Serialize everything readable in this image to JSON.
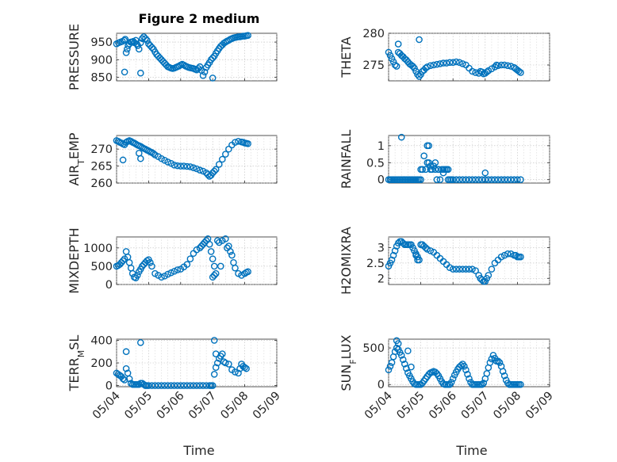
{
  "figure_title": "Figure 2 medium",
  "marker_color": "#0072BD",
  "xlabel_bottom": "Time",
  "x_ticks": [
    "05/04",
    "05/05",
    "05/06",
    "05/07",
    "05/08",
    "05/09"
  ],
  "chart_data": [
    {
      "type": "scatter",
      "title": "Figure 2 medium",
      "ylabel": "PRESSURE",
      "ylim": [
        840,
        975
      ],
      "yticks": [
        850,
        900,
        950
      ],
      "grid": true,
      "x": [
        0,
        0.06,
        0.12,
        0.18,
        0.24,
        0.27,
        0.3,
        0.33,
        0.36,
        0.4,
        0.44,
        0.48,
        0.52,
        0.56,
        0.6,
        0.63,
        0.66,
        0.7,
        0.75,
        0.8,
        0.85,
        0.9,
        0.95,
        1.0,
        1.05,
        1.1,
        1.15,
        1.2,
        1.25,
        1.3,
        1.35,
        1.4,
        1.45,
        1.5,
        1.55,
        1.6,
        1.65,
        1.7,
        1.75,
        1.8,
        1.85,
        1.9,
        1.95,
        2.0,
        2.05,
        2.1,
        2.15,
        2.2,
        2.25,
        2.3,
        2.35,
        2.4,
        2.45,
        2.5,
        2.55,
        2.6,
        2.65,
        2.7,
        2.75,
        2.8,
        2.85,
        2.9,
        2.95,
        3.0,
        3.05,
        3.1,
        3.15,
        3.2,
        3.25,
        3.3,
        3.35,
        3.4,
        3.45,
        3.5,
        3.55,
        3.6,
        3.65,
        3.7,
        3.75,
        3.8,
        3.85,
        3.9,
        3.95,
        4.0,
        4.05,
        4.1,
        0.25,
        0.75,
        3.0
      ],
      "y": [
        945,
        948,
        950,
        952,
        955,
        958,
        920,
        930,
        940,
        945,
        950,
        950,
        952,
        948,
        955,
        945,
        940,
        930,
        948,
        960,
        965,
        960,
        955,
        945,
        940,
        935,
        930,
        922,
        915,
        910,
        905,
        900,
        895,
        890,
        885,
        880,
        878,
        876,
        875,
        876,
        878,
        880,
        882,
        885,
        887,
        885,
        882,
        880,
        878,
        877,
        876,
        875,
        873,
        871,
        875,
        880,
        870,
        855,
        865,
        878,
        885,
        892,
        900,
        905,
        910,
        918,
        925,
        932,
        938,
        942,
        947,
        950,
        953,
        955,
        958,
        960,
        962,
        963,
        964,
        965,
        965,
        966,
        967,
        967,
        968,
        969,
        865,
        862,
        848
      ]
    },
    {
      "type": "scatter",
      "ylabel": "THETA",
      "ylim": [
        272.5,
        280
      ],
      "yticks": [
        275,
        280
      ],
      "grid": true,
      "x": [
        0,
        0.05,
        0.1,
        0.15,
        0.2,
        0.25,
        0.3,
        0.35,
        0.4,
        0.45,
        0.5,
        0.55,
        0.6,
        0.65,
        0.7,
        0.75,
        0.8,
        0.85,
        0.9,
        0.95,
        1.0,
        1.05,
        1.1,
        1.15,
        1.2,
        1.3,
        1.4,
        1.5,
        1.6,
        1.7,
        1.8,
        1.9,
        2.0,
        2.1,
        2.2,
        2.3,
        2.4,
        2.5,
        2.6,
        2.7,
        2.8,
        2.85,
        2.9,
        2.95,
        3.0,
        3.05,
        3.1,
        3.2,
        3.3,
        3.4,
        3.5,
        3.6,
        3.7,
        3.8,
        3.9,
        3.95,
        4.0,
        4.05,
        4.1,
        0.3,
        0.95,
        3.35
      ],
      "y": [
        277,
        276.5,
        276,
        275.5,
        275,
        274.8,
        277,
        276.8,
        276.5,
        276.3,
        276,
        275.8,
        275.5,
        275.2,
        275,
        274.8,
        274.5,
        274,
        273.5,
        273.2,
        273.5,
        274,
        274.2,
        274.5,
        274.7,
        274.9,
        275,
        275.1,
        275.2,
        275.3,
        275.3,
        275.4,
        275.4,
        275.5,
        275.4,
        275.2,
        275,
        274.5,
        274,
        273.8,
        273.7,
        274,
        273.9,
        273.6,
        273.7,
        273.9,
        274.1,
        274.4,
        274.7,
        274.9,
        275,
        275,
        274.9,
        274.8,
        274.6,
        274.4,
        274.2,
        274.0,
        273.8,
        278.3,
        279.0,
        275.0
      ]
    },
    {
      "type": "scatter",
      "ylabel": "AIR_TEMP",
      "ylim": [
        260,
        274
      ],
      "yticks": [
        260,
        265,
        270
      ],
      "grid": true,
      "x": [
        0,
        0.05,
        0.1,
        0.15,
        0.2,
        0.25,
        0.3,
        0.35,
        0.4,
        0.45,
        0.5,
        0.55,
        0.6,
        0.65,
        0.7,
        0.75,
        0.8,
        0.85,
        0.9,
        0.95,
        1.0,
        1.05,
        1.1,
        1.15,
        1.2,
        1.3,
        1.4,
        1.5,
        1.6,
        1.7,
        1.8,
        1.9,
        2.0,
        2.1,
        2.2,
        2.3,
        2.4,
        2.5,
        2.6,
        2.7,
        2.8,
        2.85,
        2.9,
        2.95,
        3.0,
        3.05,
        3.1,
        3.2,
        3.3,
        3.4,
        3.5,
        3.6,
        3.7,
        3.8,
        3.9,
        3.95,
        4.0,
        4.05,
        4.1,
        0.2,
        0.7,
        0.75
      ],
      "y": [
        272.5,
        272.3,
        272,
        271.8,
        271.5,
        271.3,
        272,
        272.3,
        272.5,
        272.3,
        272,
        271.8,
        271.5,
        271.2,
        271,
        270.8,
        270.5,
        270.2,
        270,
        269.7,
        269.5,
        269.2,
        269,
        268.7,
        268.3,
        267.8,
        267.2,
        266.7,
        266.2,
        265.8,
        265.3,
        265.1,
        265,
        265,
        264.9,
        264.8,
        264.5,
        264.2,
        263.8,
        263.5,
        263,
        262.5,
        262,
        262.3,
        263,
        263.5,
        264,
        265.5,
        267,
        268.5,
        270,
        271.2,
        272,
        272.3,
        272.1,
        272,
        271.8,
        271.7,
        271.6,
        266.8,
        268.8,
        267.2
      ]
    },
    {
      "type": "scatter",
      "ylabel": "RAINFALL",
      "ylim": [
        -0.1,
        1.3
      ],
      "yticks": [
        0,
        0.5,
        1
      ],
      "grid": true,
      "x": [
        0,
        0.05,
        0.1,
        0.15,
        0.2,
        0.25,
        0.3,
        0.35,
        0.4,
        0.45,
        0.5,
        0.55,
        0.6,
        0.65,
        0.7,
        0.75,
        0.8,
        0.85,
        0.9,
        0.95,
        1.0,
        1.05,
        1.1,
        1.15,
        1.2,
        1.25,
        1.3,
        1.35,
        1.4,
        1.45,
        1.5,
        1.55,
        1.6,
        1.65,
        1.7,
        1.75,
        1.8,
        1.85,
        1.9,
        1.95,
        2.0,
        2.1,
        2.2,
        2.3,
        2.4,
        2.5,
        2.6,
        2.7,
        2.8,
        2.9,
        3.0,
        3.1,
        3.2,
        3.3,
        3.4,
        3.5,
        3.6,
        3.7,
        3.8,
        3.9,
        4.0,
        4.1,
        0.4,
        1.0,
        1.05,
        1.2,
        1.25,
        1.3,
        1.45,
        1.55,
        1.7,
        1.8,
        1.85,
        3.0
      ],
      "y": [
        0,
        0,
        0,
        0,
        0,
        0,
        0,
        0,
        0,
        0,
        0,
        0,
        0,
        0,
        0,
        0,
        0,
        0,
        0,
        0,
        0,
        0.3,
        0.7,
        0.3,
        0.5,
        0.5,
        0.4,
        0.3,
        0.4,
        0.5,
        0,
        0.3,
        0,
        0.3,
        0.2,
        0.3,
        0.3,
        0,
        0,
        0,
        0,
        0,
        0,
        0,
        0,
        0,
        0,
        0,
        0,
        0,
        0,
        0,
        0,
        0,
        0,
        0,
        0,
        0,
        0,
        0,
        0,
        0,
        1.25,
        0.3,
        0.3,
        1.0,
        1.0,
        0.3,
        0.3,
        0.3,
        0.3,
        0.3,
        0.3,
        0.2
      ]
    },
    {
      "type": "scatter",
      "ylabel": "MIXDEPTH",
      "ylim": [
        0,
        1300
      ],
      "yticks": [
        0,
        500,
        1000
      ],
      "grid": true,
      "x": [
        0,
        0.05,
        0.1,
        0.15,
        0.2,
        0.25,
        0.3,
        0.35,
        0.4,
        0.45,
        0.5,
        0.55,
        0.6,
        0.65,
        0.7,
        0.75,
        0.8,
        0.85,
        0.9,
        0.95,
        1.0,
        1.05,
        1.1,
        1.2,
        1.3,
        1.4,
        1.5,
        1.6,
        1.7,
        1.8,
        1.9,
        2.0,
        2.1,
        2.2,
        2.3,
        2.4,
        2.5,
        2.6,
        2.65,
        2.7,
        2.75,
        2.8,
        2.85,
        2.9,
        2.95,
        3.0,
        3.05,
        3.1,
        3.15,
        3.2,
        3.3,
        3.4,
        3.5,
        3.55,
        3.6,
        3.65,
        3.7,
        3.8,
        3.9,
        4.0,
        4.05,
        4.1,
        3.0,
        3.05,
        3.25,
        3.45
      ],
      "y": [
        500,
        520,
        550,
        600,
        650,
        700,
        900,
        750,
        600,
        450,
        300,
        200,
        180,
        250,
        350,
        420,
        500,
        550,
        600,
        650,
        680,
        600,
        500,
        300,
        250,
        200,
        230,
        280,
        320,
        360,
        400,
        420,
        480,
        550,
        700,
        850,
        950,
        1000,
        1050,
        1100,
        1150,
        1200,
        1250,
        1100,
        900,
        700,
        500,
        300,
        1200,
        1150,
        1200,
        1250,
        1050,
        900,
        800,
        600,
        450,
        300,
        250,
        300,
        330,
        350,
        200,
        250,
        500,
        1000
      ]
    },
    {
      "type": "scatter",
      "ylabel": "H2OMIXRA",
      "ylim": [
        1.8,
        3.35
      ],
      "yticks": [
        2,
        2.5,
        3
      ],
      "grid": true,
      "x": [
        0,
        0.05,
        0.1,
        0.15,
        0.2,
        0.25,
        0.3,
        0.35,
        0.4,
        0.45,
        0.5,
        0.55,
        0.6,
        0.65,
        0.7,
        0.75,
        0.8,
        0.85,
        0.9,
        0.95,
        1.0,
        1.05,
        1.1,
        1.15,
        1.2,
        1.3,
        1.4,
        1.5,
        1.6,
        1.7,
        1.8,
        1.9,
        2.0,
        2.1,
        2.2,
        2.3,
        2.4,
        2.5,
        2.6,
        2.7,
        2.8,
        2.85,
        2.9,
        2.95,
        3.0,
        3.05,
        3.1,
        3.2,
        3.3,
        3.4,
        3.5,
        3.6,
        3.7,
        3.8,
        3.9,
        3.95,
        4.0,
        4.05,
        4.1,
        0.85,
        0.9
      ],
      "y": [
        2.4,
        2.5,
        2.6,
        2.75,
        2.9,
        3.05,
        3.15,
        3.2,
        3.2,
        3.15,
        3.1,
        3.1,
        3.1,
        3.1,
        3.1,
        3.0,
        2.9,
        2.8,
        2.7,
        2.6,
        3.1,
        3.1,
        3.05,
        3.0,
        2.95,
        2.9,
        2.85,
        2.75,
        2.65,
        2.55,
        2.45,
        2.35,
        2.3,
        2.3,
        2.3,
        2.3,
        2.3,
        2.3,
        2.3,
        2.25,
        2.1,
        2.0,
        1.95,
        1.9,
        1.9,
        2.0,
        2.1,
        2.3,
        2.5,
        2.6,
        2.7,
        2.75,
        2.8,
        2.8,
        2.75,
        2.75,
        2.7,
        2.7,
        2.7,
        2.75,
        2.6
      ]
    },
    {
      "type": "scatter",
      "ylabel": "TERR_MSL",
      "ylim": [
        -10,
        410
      ],
      "yticks": [
        0,
        200,
        400
      ],
      "grid": true,
      "x": [
        0,
        0.05,
        0.1,
        0.15,
        0.2,
        0.25,
        0.3,
        0.35,
        0.4,
        0.45,
        0.5,
        0.55,
        0.6,
        0.65,
        0.7,
        0.75,
        0.8,
        0.85,
        0.9,
        0.95,
        1.0,
        1.1,
        1.2,
        1.3,
        1.4,
        1.5,
        1.6,
        1.7,
        1.8,
        1.9,
        2.0,
        2.1,
        2.2,
        2.3,
        2.4,
        2.5,
        2.6,
        2.7,
        2.8,
        2.9,
        2.95,
        3.0,
        3.05,
        3.1,
        3.15,
        3.2,
        3.25,
        3.3,
        3.35,
        3.4,
        3.5,
        3.6,
        3.7,
        3.8,
        3.85,
        3.9,
        3.95,
        4.0,
        4.05,
        0.3,
        0.75,
        3.05,
        3.1
      ],
      "y": [
        110,
        100,
        90,
        80,
        60,
        50,
        150,
        110,
        60,
        20,
        10,
        10,
        10,
        10,
        10,
        20,
        20,
        10,
        0,
        0,
        0,
        0,
        0,
        0,
        0,
        0,
        0,
        0,
        0,
        0,
        0,
        0,
        0,
        0,
        0,
        0,
        0,
        0,
        0,
        0,
        0,
        0,
        100,
        160,
        200,
        240,
        260,
        280,
        210,
        200,
        190,
        140,
        120,
        110,
        150,
        190,
        170,
        160,
        150,
        300,
        380,
        400,
        280
      ]
    },
    {
      "type": "scatter",
      "ylabel": "SUN_FLUX",
      "ylim": [
        -30,
        620
      ],
      "yticks": [
        0,
        500
      ],
      "grid": true,
      "x": [
        0,
        0.05,
        0.1,
        0.15,
        0.2,
        0.25,
        0.3,
        0.35,
        0.4,
        0.45,
        0.5,
        0.55,
        0.6,
        0.65,
        0.7,
        0.75,
        0.8,
        0.85,
        0.9,
        0.95,
        1.0,
        1.05,
        1.1,
        1.15,
        1.2,
        1.25,
        1.3,
        1.35,
        1.4,
        1.45,
        1.5,
        1.55,
        1.6,
        1.65,
        1.7,
        1.75,
        1.8,
        1.85,
        1.9,
        1.95,
        2.0,
        2.05,
        2.1,
        2.15,
        2.2,
        2.25,
        2.3,
        2.35,
        2.4,
        2.45,
        2.5,
        2.55,
        2.6,
        2.65,
        2.7,
        2.75,
        2.8,
        2.85,
        2.9,
        2.95,
        3.0,
        3.05,
        3.1,
        3.15,
        3.2,
        3.25,
        3.3,
        3.35,
        3.4,
        3.45,
        3.5,
        3.55,
        3.6,
        3.65,
        3.7,
        3.75,
        3.8,
        3.85,
        3.9,
        3.95,
        4.0,
        4.05,
        4.1,
        0.25,
        0.3,
        0.6,
        0.7
      ],
      "y": [
        200,
        250,
        300,
        380,
        450,
        500,
        560,
        440,
        400,
        340,
        280,
        220,
        160,
        120,
        80,
        40,
        10,
        0,
        0,
        0,
        0,
        20,
        50,
        80,
        110,
        140,
        160,
        170,
        180,
        170,
        150,
        120,
        80,
        40,
        10,
        0,
        0,
        0,
        0,
        30,
        80,
        130,
        170,
        210,
        240,
        260,
        280,
        250,
        200,
        140,
        80,
        30,
        0,
        0,
        0,
        0,
        0,
        0,
        0,
        20,
        80,
        150,
        230,
        300,
        350,
        400,
        360,
        320,
        320,
        300,
        250,
        180,
        120,
        60,
        20,
        0,
        0,
        0,
        0,
        0,
        0,
        0,
        0,
        600,
        480,
        460,
        240
      ]
    }
  ]
}
